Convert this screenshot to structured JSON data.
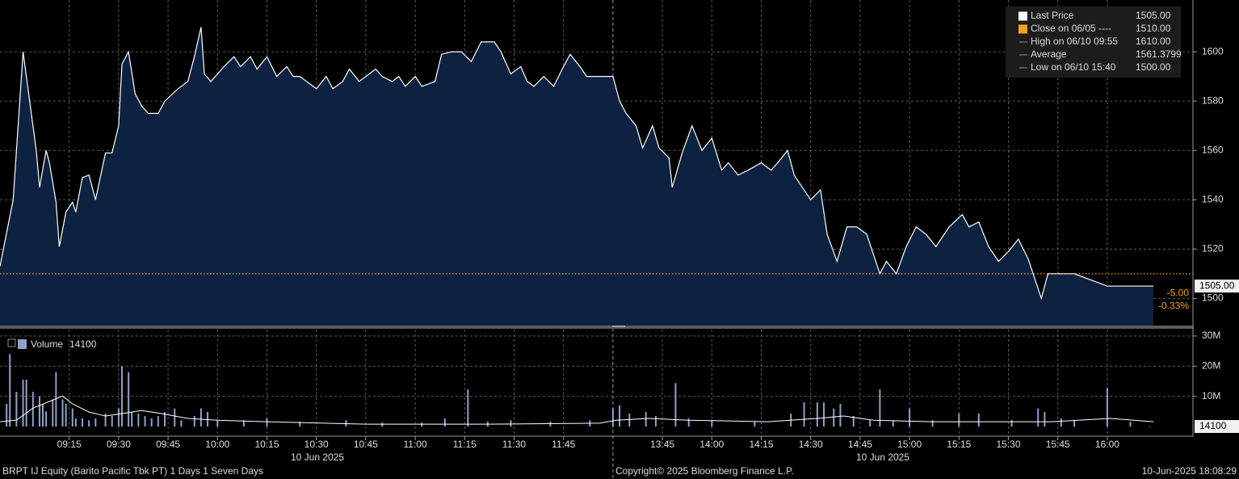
{
  "chart_data": {
    "type": "area",
    "title": "BRPT IJ Equity (Barito Pacific Tbk PT) 1 Days 1 Seven Days",
    "footer_center": "Copyright© 2025 Bloomberg Finance L.P.",
    "footer_right": "10-Jun-2025 18:08:29",
    "date_labels": [
      "10 Jun 2025",
      "10 Jun 2025"
    ],
    "x": [
      "08:54",
      "08:58",
      "09:01",
      "09:03",
      "09:05",
      "09:06",
      "09:08",
      "09:09",
      "09:11",
      "09:12",
      "09:14",
      "09:16",
      "09:17",
      "09:19",
      "09:21",
      "09:23",
      "09:26",
      "09:28",
      "09:30",
      "09:31",
      "09:33",
      "09:35",
      "09:37",
      "09:39",
      "09:42",
      "09:44",
      "09:48",
      "09:51",
      "09:53",
      "09:55",
      "09:56",
      "09:58",
      "10:00",
      "10:02",
      "10:05",
      "10:07",
      "10:10",
      "10:12",
      "10:15",
      "10:18",
      "10:21",
      "10:23",
      "10:25",
      "10:27",
      "10:30",
      "10:33",
      "10:35",
      "10:38",
      "10:40",
      "10:43",
      "10:45",
      "10:48",
      "10:50",
      "10:53",
      "10:55",
      "10:57",
      "11:00",
      "11:02",
      "11:06",
      "11:08",
      "11:11",
      "11:14",
      "11:17",
      "11:20",
      "11:24",
      "11:26",
      "11:29",
      "11:32",
      "11:34",
      "11:36",
      "11:39",
      "11:42",
      "11:45",
      "11:47",
      "11:50",
      "11:52",
      "11:57",
      "13:30",
      "13:32",
      "13:34",
      "13:37",
      "13:39",
      "13:42",
      "13:44",
      "13:47",
      "13:48",
      "13:51",
      "13:54",
      "13:57",
      "14:00",
      "14:03",
      "14:05",
      "14:08",
      "14:11",
      "14:15",
      "14:18",
      "14:20",
      "14:23",
      "14:25",
      "14:28",
      "14:30",
      "14:33",
      "14:35",
      "14:38",
      "14:41",
      "14:44",
      "14:47",
      "14:51",
      "14:53",
      "14:56",
      "14:59",
      "15:02",
      "15:05",
      "15:08",
      "15:12",
      "15:16",
      "15:18",
      "15:21",
      "15:24",
      "15:27",
      "15:30",
      "15:33",
      "15:36",
      "15:40",
      "15:42",
      "15:45",
      "15:50",
      "16:00",
      "16:14"
    ],
    "xlim": [
      "08:54",
      "16:26"
    ],
    "xticks": [
      "09:15",
      "09:30",
      "09:45",
      "10:00",
      "10:15",
      "10:30",
      "10:45",
      "11:00",
      "11:15",
      "11:30",
      "11:45",
      "13:45",
      "14:00",
      "14:15",
      "14:30",
      "14:45",
      "15:00",
      "15:15",
      "15:30",
      "15:45",
      "16:00"
    ],
    "series": [
      {
        "name": "Last Price",
        "color": "#ffffff",
        "fill": "#0c2240",
        "values": [
          1513,
          1540,
          1600,
          1580,
          1560,
          1545,
          1560,
          1555,
          1539,
          1521,
          1535,
          1539,
          1535,
          1549,
          1550,
          1540,
          1559,
          1559,
          1570,
          1595,
          1600,
          1583,
          1578,
          1575,
          1575,
          1580,
          1585,
          1588,
          1598,
          1610,
          1591,
          1588,
          1591,
          1594,
          1598,
          1594,
          1598,
          1593,
          1598,
          1590,
          1594,
          1590,
          1590,
          1588,
          1585,
          1590,
          1585,
          1588,
          1593,
          1588,
          1590,
          1593,
          1590,
          1588,
          1590,
          1586,
          1590,
          1586,
          1588,
          1599,
          1600,
          1600,
          1596,
          1604,
          1604,
          1600,
          1591,
          1594,
          1588,
          1586,
          1590,
          1586,
          1594,
          1599,
          1594,
          1590,
          1590,
          1590,
          1580,
          1575,
          1570,
          1561,
          1570,
          1561,
          1557,
          1545,
          1559,
          1570,
          1560,
          1565,
          1552,
          1555,
          1550,
          1552,
          1555,
          1552,
          1555,
          1560,
          1550,
          1544,
          1540,
          1544,
          1526,
          1515,
          1529,
          1529,
          1526,
          1510,
          1515,
          1510,
          1521,
          1529,
          1526,
          1521,
          1529,
          1534,
          1529,
          1531,
          1521,
          1515,
          1519,
          1524,
          1516,
          1500,
          1510,
          1510,
          1510,
          1505,
          1505
        ],
        "legend_value": 1505,
        "legend_label": "1505.00"
      }
    ],
    "ylim": [
      1489,
      1621
    ],
    "yticks": [
      1500,
      1520,
      1540,
      1560,
      1580,
      1600
    ],
    "grid": true,
    "reference_lines": [
      {
        "name": "Close on 06/05 ----",
        "value": 1510,
        "value_label": "1510.00",
        "color": "#f7a21b"
      }
    ],
    "stats": [
      {
        "name": "High on 06/10 09:55",
        "value": 1610,
        "value_label": "1610.00"
      },
      {
        "name": "Average",
        "value": 1561.3799
      },
      {
        "name": "Low on 06/10 15:40",
        "value": 1500,
        "value_label": "1500.00"
      }
    ],
    "change": {
      "value": -5,
      "label": "-5.00"
    },
    "change_pct": {
      "value": -0.33,
      "label": "-0.33%"
    },
    "volume": {
      "type": "bar",
      "name": "Volume",
      "color": "#8ea2ca",
      "x": [
        "08:56",
        "08:57",
        "08:59",
        "09:01",
        "09:02",
        "09:04",
        "09:06",
        "09:07",
        "09:08",
        "09:10",
        "09:11",
        "09:13",
        "09:14",
        "09:16",
        "09:17",
        "09:19",
        "09:21",
        "09:23",
        "09:26",
        "09:28",
        "09:30",
        "09:31",
        "09:33",
        "09:34",
        "09:36",
        "09:38",
        "09:40",
        "09:42",
        "09:44",
        "09:47",
        "09:49",
        "09:53",
        "09:55",
        "09:57",
        "10:00",
        "10:08",
        "10:15",
        "10:25",
        "10:39",
        "10:50",
        "11:02",
        "11:09",
        "11:16",
        "11:22",
        "11:29",
        "11:41",
        "11:53",
        "13:30",
        "13:32",
        "13:35",
        "13:40",
        "13:43",
        "13:49",
        "13:53",
        "14:00",
        "14:13",
        "14:24",
        "14:28",
        "14:32",
        "14:34",
        "14:37",
        "14:39",
        "14:43",
        "14:48",
        "14:51",
        "14:55",
        "15:00",
        "15:07",
        "15:15",
        "15:21",
        "15:31",
        "15:39",
        "15:41",
        "15:46",
        "15:50",
        "16:00",
        "16:07",
        "16:13"
      ],
      "values": [
        7500000,
        24000000,
        11500000,
        15500000,
        15500000,
        11500000,
        10000000,
        7500000,
        5000000,
        9000000,
        18000000,
        9000000,
        7500000,
        6000000,
        2700000,
        2700000,
        2100000,
        2700000,
        4300000,
        3500000,
        6000000,
        20000000,
        18000000,
        4800000,
        4300000,
        3500000,
        2700000,
        3500000,
        4800000,
        6000000,
        2100000,
        3500000,
        6000000,
        4800000,
        2100000,
        2100000,
        2700000,
        1600000,
        2100000,
        1300000,
        1300000,
        2700000,
        12300000,
        1600000,
        2100000,
        1600000,
        2100000,
        6000000,
        7000000,
        4300000,
        4800000,
        3500000,
        14400000,
        2700000,
        2100000,
        1600000,
        4300000,
        8000000,
        8000000,
        8000000,
        6000000,
        7500000,
        3500000,
        2100000,
        12300000,
        2100000,
        6000000,
        2100000,
        4300000,
        4300000,
        2100000,
        6000000,
        4800000,
        2700000,
        2100000,
        12800000,
        1600000,
        14100
      ],
      "average_color": "#ffffff",
      "average_x": [
        "08:54",
        "08:59",
        "09:04",
        "09:09",
        "09:13",
        "09:16",
        "09:21",
        "09:26",
        "09:31",
        "09:37",
        "09:43",
        "09:51",
        "10:00",
        "10:15",
        "10:45",
        "11:22",
        "11:56",
        "13:31",
        "13:41",
        "13:53",
        "14:17",
        "14:32",
        "14:40",
        "14:49",
        "15:07",
        "15:43",
        "16:01",
        "16:14"
      ],
      "average_values": [
        1600000,
        2100000,
        6100000,
        8300000,
        10100000,
        7500000,
        4800000,
        3500000,
        4300000,
        5300000,
        4300000,
        2700000,
        2100000,
        1600000,
        800000,
        800000,
        1100000,
        2100000,
        2700000,
        2100000,
        1600000,
        2700000,
        3500000,
        2100000,
        1600000,
        1600000,
        2700000,
        1600000
      ],
      "ylim": [
        -3200000,
        32400000
      ],
      "yticks": [
        {
          "value": 10000000,
          "label": "10M"
        },
        {
          "value": 20000000,
          "label": "20M"
        },
        {
          "value": 30000000,
          "label": "30M"
        }
      ]
    }
  }
}
